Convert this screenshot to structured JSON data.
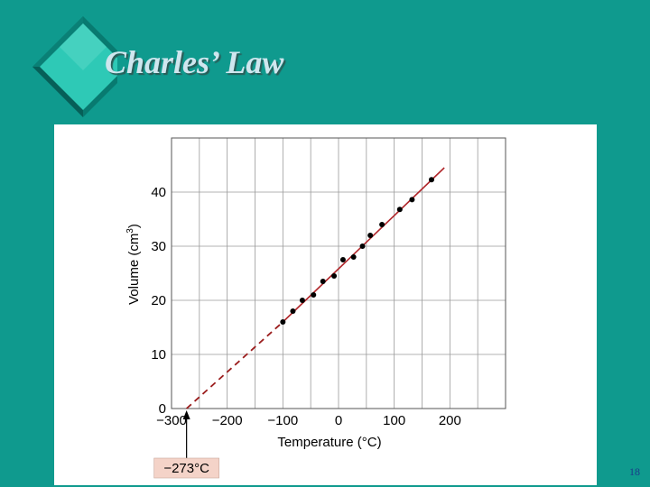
{
  "slide": {
    "title": "Charles’ Law",
    "page_number": "18",
    "background_color": "#0f9a8e",
    "title_color": "#cfe6ee"
  },
  "chart_data": {
    "type": "scatter",
    "title": "",
    "xlabel": "Temperature (°C)",
    "ylabel_base": "Volume (cm",
    "ylabel_sup": "3",
    "ylabel_close": ")",
    "xlim": [
      -300,
      300
    ],
    "ylim": [
      0,
      50
    ],
    "x_ticks": [
      -300,
      -200,
      -100,
      0,
      100,
      200
    ],
    "x_tick_labels": [
      "−300",
      "−200",
      "−100",
      "0",
      "100",
      "200"
    ],
    "y_ticks": [
      0,
      10,
      20,
      30,
      40
    ],
    "y_tick_labels": [
      "0",
      "10",
      "20",
      "30",
      "40"
    ],
    "grid": true,
    "fit_line": {
      "from": [
        -100,
        16
      ],
      "to": [
        190,
        44.5
      ],
      "color": "#b0262a"
    },
    "extrapolation": {
      "from": [
        -273,
        0
      ],
      "to": [
        -100,
        16
      ],
      "style": "dashed",
      "color": "#9b1d1d"
    },
    "annotation": {
      "text": "−273°C",
      "x": -273,
      "y": 0,
      "box_color": "#f4d3c8"
    },
    "points": [
      {
        "x": -100,
        "y": 16
      },
      {
        "x": -82,
        "y": 18
      },
      {
        "x": -65,
        "y": 20
      },
      {
        "x": -45,
        "y": 21
      },
      {
        "x": -28,
        "y": 23.5
      },
      {
        "x": -8,
        "y": 24.5
      },
      {
        "x": 8,
        "y": 27.5
      },
      {
        "x": 27,
        "y": 28
      },
      {
        "x": 43,
        "y": 30
      },
      {
        "x": 57,
        "y": 32
      },
      {
        "x": 78,
        "y": 34
      },
      {
        "x": 110,
        "y": 36.8
      },
      {
        "x": 132,
        "y": 38.6
      },
      {
        "x": 167,
        "y": 42.3
      }
    ]
  }
}
